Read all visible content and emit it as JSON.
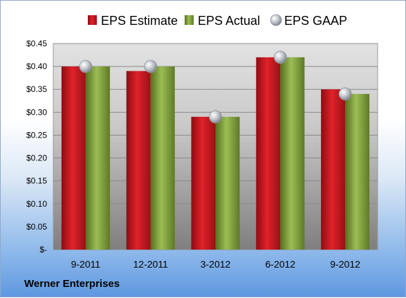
{
  "company": "Werner Enterprises",
  "chart_data": {
    "type": "bar",
    "categories": [
      "9-2011",
      "12-2011",
      "3-2012",
      "6-2012",
      "9-2012"
    ],
    "series": [
      {
        "name": "EPS Estimate",
        "values": [
          0.4,
          0.39,
          0.29,
          0.42,
          0.35
        ],
        "color": "#c0141c"
      },
      {
        "name": "EPS Actual",
        "values": [
          0.4,
          0.4,
          0.29,
          0.42,
          0.34
        ],
        "color": "#7a9a3a"
      },
      {
        "name": "EPS GAAP",
        "values": [
          0.4,
          0.4,
          0.29,
          0.42,
          0.34
        ],
        "color": "#b8bcc4",
        "marker": "sphere"
      }
    ],
    "y_ticks": [
      "$-",
      "$0.05",
      "$0.10",
      "$0.15",
      "$0.20",
      "$0.25",
      "$0.30",
      "$0.35",
      "$0.40",
      "$0.45"
    ],
    "ylim": [
      0,
      0.45
    ],
    "grid": true,
    "legend_position": "top"
  }
}
